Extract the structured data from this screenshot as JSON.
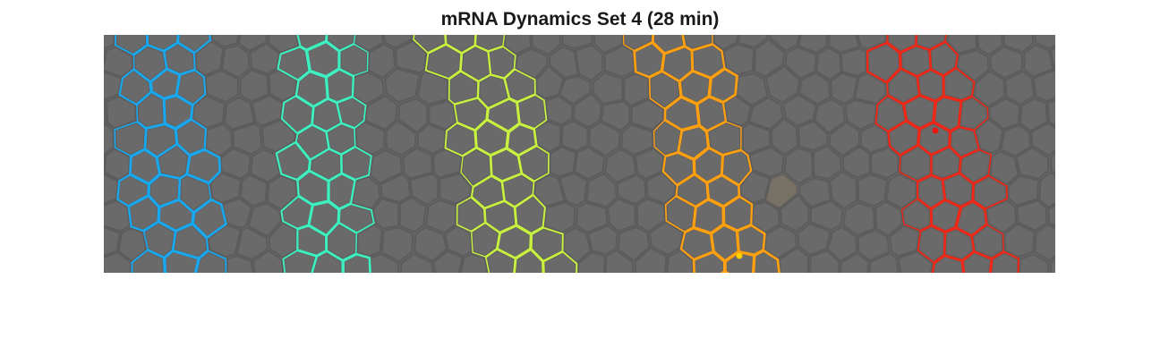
{
  "figure": {
    "title": "mRNA Dynamics Set 4 (28 min)"
  },
  "image": {
    "background_color": "#6a6a6a",
    "membrane_color": "#5c5c5c",
    "stripes": [
      {
        "color": "#18a8f0"
      },
      {
        "color": "#3ef0c0"
      },
      {
        "color": "#c8f040"
      },
      {
        "color": "#ffa010"
      },
      {
        "color": "#f02818"
      }
    ],
    "markers": [
      {
        "color": "#ffd000",
        "shape": "dot"
      },
      {
        "color": "#e81810",
        "shape": "dot"
      }
    ],
    "highlight_cell": {
      "color": "#8a7a60"
    }
  }
}
